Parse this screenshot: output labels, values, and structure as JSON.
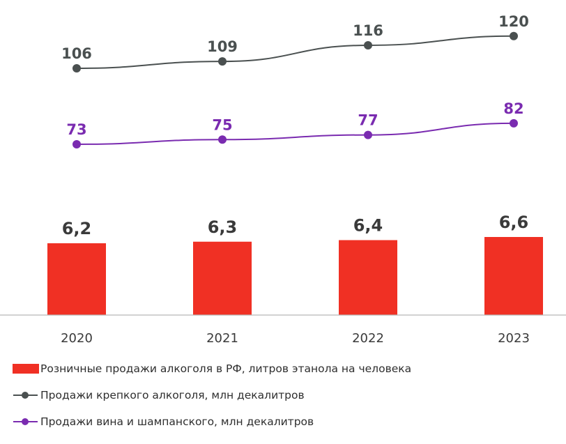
{
  "chart_data": {
    "type": "bar",
    "categories": [
      "2020",
      "2021",
      "2022",
      "2023"
    ],
    "bars": {
      "name": "Розничные продажи алкоголя в РФ, литров этанола на человека",
      "values": [
        6.2,
        6.3,
        6.4,
        6.6
      ],
      "labels": [
        "6,2",
        "6,3",
        "6,4",
        "6,6"
      ],
      "color": "#f03024"
    },
    "lines": [
      {
        "name": "Продажи крепкого алкоголя, млн декалитров",
        "values": [
          106,
          109,
          116,
          120
        ],
        "labels": [
          "106",
          "109",
          "116",
          "120"
        ],
        "color": "#4a5050"
      },
      {
        "name": "Продажи вина и шампанского, млн декалитров",
        "values": [
          73,
          75,
          77,
          82
        ],
        "labels": [
          "73",
          "75",
          "77",
          "82"
        ],
        "color": "#7a2bb0"
      }
    ],
    "axis_color": "#b8b8b8",
    "legend_position": "bottom-left"
  }
}
